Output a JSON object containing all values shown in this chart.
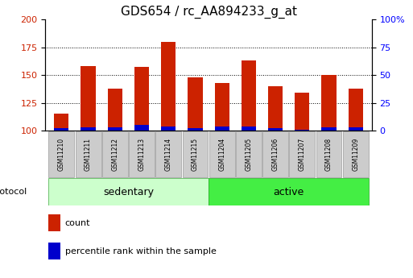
{
  "title": "GDS654 / rc_AA894233_g_at",
  "categories": [
    "GSM11210",
    "GSM11211",
    "GSM11212",
    "GSM11213",
    "GSM11214",
    "GSM11215",
    "GSM11204",
    "GSM11205",
    "GSM11206",
    "GSM11207",
    "GSM11208",
    "GSM11209"
  ],
  "red_values": [
    115,
    158,
    138,
    157,
    180,
    148,
    143,
    163,
    140,
    134,
    150,
    138
  ],
  "blue_values": [
    102,
    103,
    103,
    105,
    104,
    102,
    104,
    104,
    102,
    101,
    103,
    103
  ],
  "baseline": 100,
  "ylim": [
    100,
    200
  ],
  "yticks_left": [
    100,
    125,
    150,
    175,
    200
  ],
  "yticks_right": [
    0,
    25,
    50,
    75,
    100
  ],
  "red_color": "#cc2200",
  "blue_color": "#0000cc",
  "bar_width": 0.55,
  "group1_label": "sedentary",
  "group2_label": "active",
  "group1_indices": [
    0,
    1,
    2,
    3,
    4,
    5
  ],
  "group2_indices": [
    6,
    7,
    8,
    9,
    10,
    11
  ],
  "group1_bg": "#ccffcc",
  "group2_bg": "#44ee44",
  "tick_box_bg": "#cccccc",
  "protocol_label": "protocol",
  "legend_count": "count",
  "legend_pct": "percentile rank within the sample",
  "title_fontsize": 11,
  "tick_fontsize": 8,
  "grid_lines": [
    125,
    150,
    175
  ]
}
